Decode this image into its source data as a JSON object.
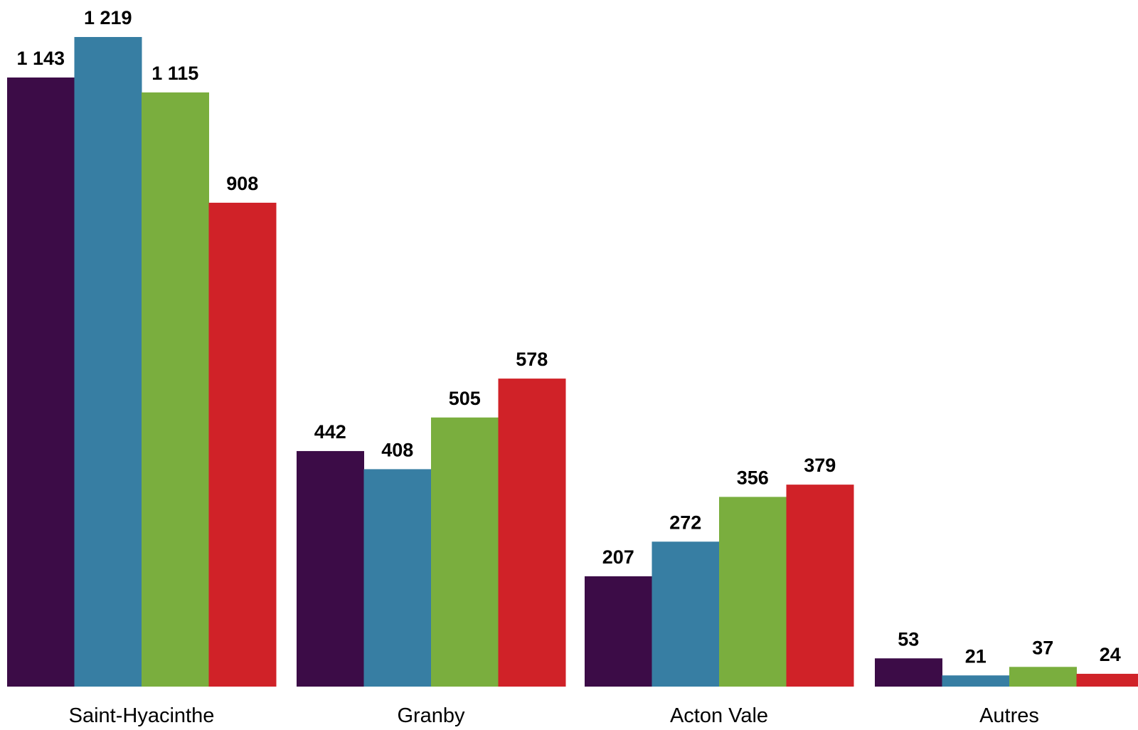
{
  "chart_data": {
    "type": "bar",
    "categories": [
      "Saint-Hyacinthe",
      "Granby",
      "Acton Vale",
      "Autres"
    ],
    "series": [
      {
        "values": [
          1143,
          442,
          207,
          53
        ],
        "labels": [
          "1 143",
          "442",
          "207",
          "53"
        ],
        "color": "#3c0c47"
      },
      {
        "values": [
          1219,
          408,
          272,
          21
        ],
        "labels": [
          "1 219",
          "408",
          "272",
          "21"
        ],
        "color": "#377ea3"
      },
      {
        "values": [
          1115,
          505,
          356,
          37
        ],
        "labels": [
          "1 115",
          "505",
          "356",
          "37"
        ],
        "color": "#7aae3e"
      },
      {
        "values": [
          908,
          578,
          379,
          24
        ],
        "labels": [
          "908",
          "578",
          "379",
          "24"
        ],
        "color": "#d02228"
      }
    ],
    "ylim": [
      0,
      1219
    ],
    "grid": false,
    "legend": "none"
  }
}
